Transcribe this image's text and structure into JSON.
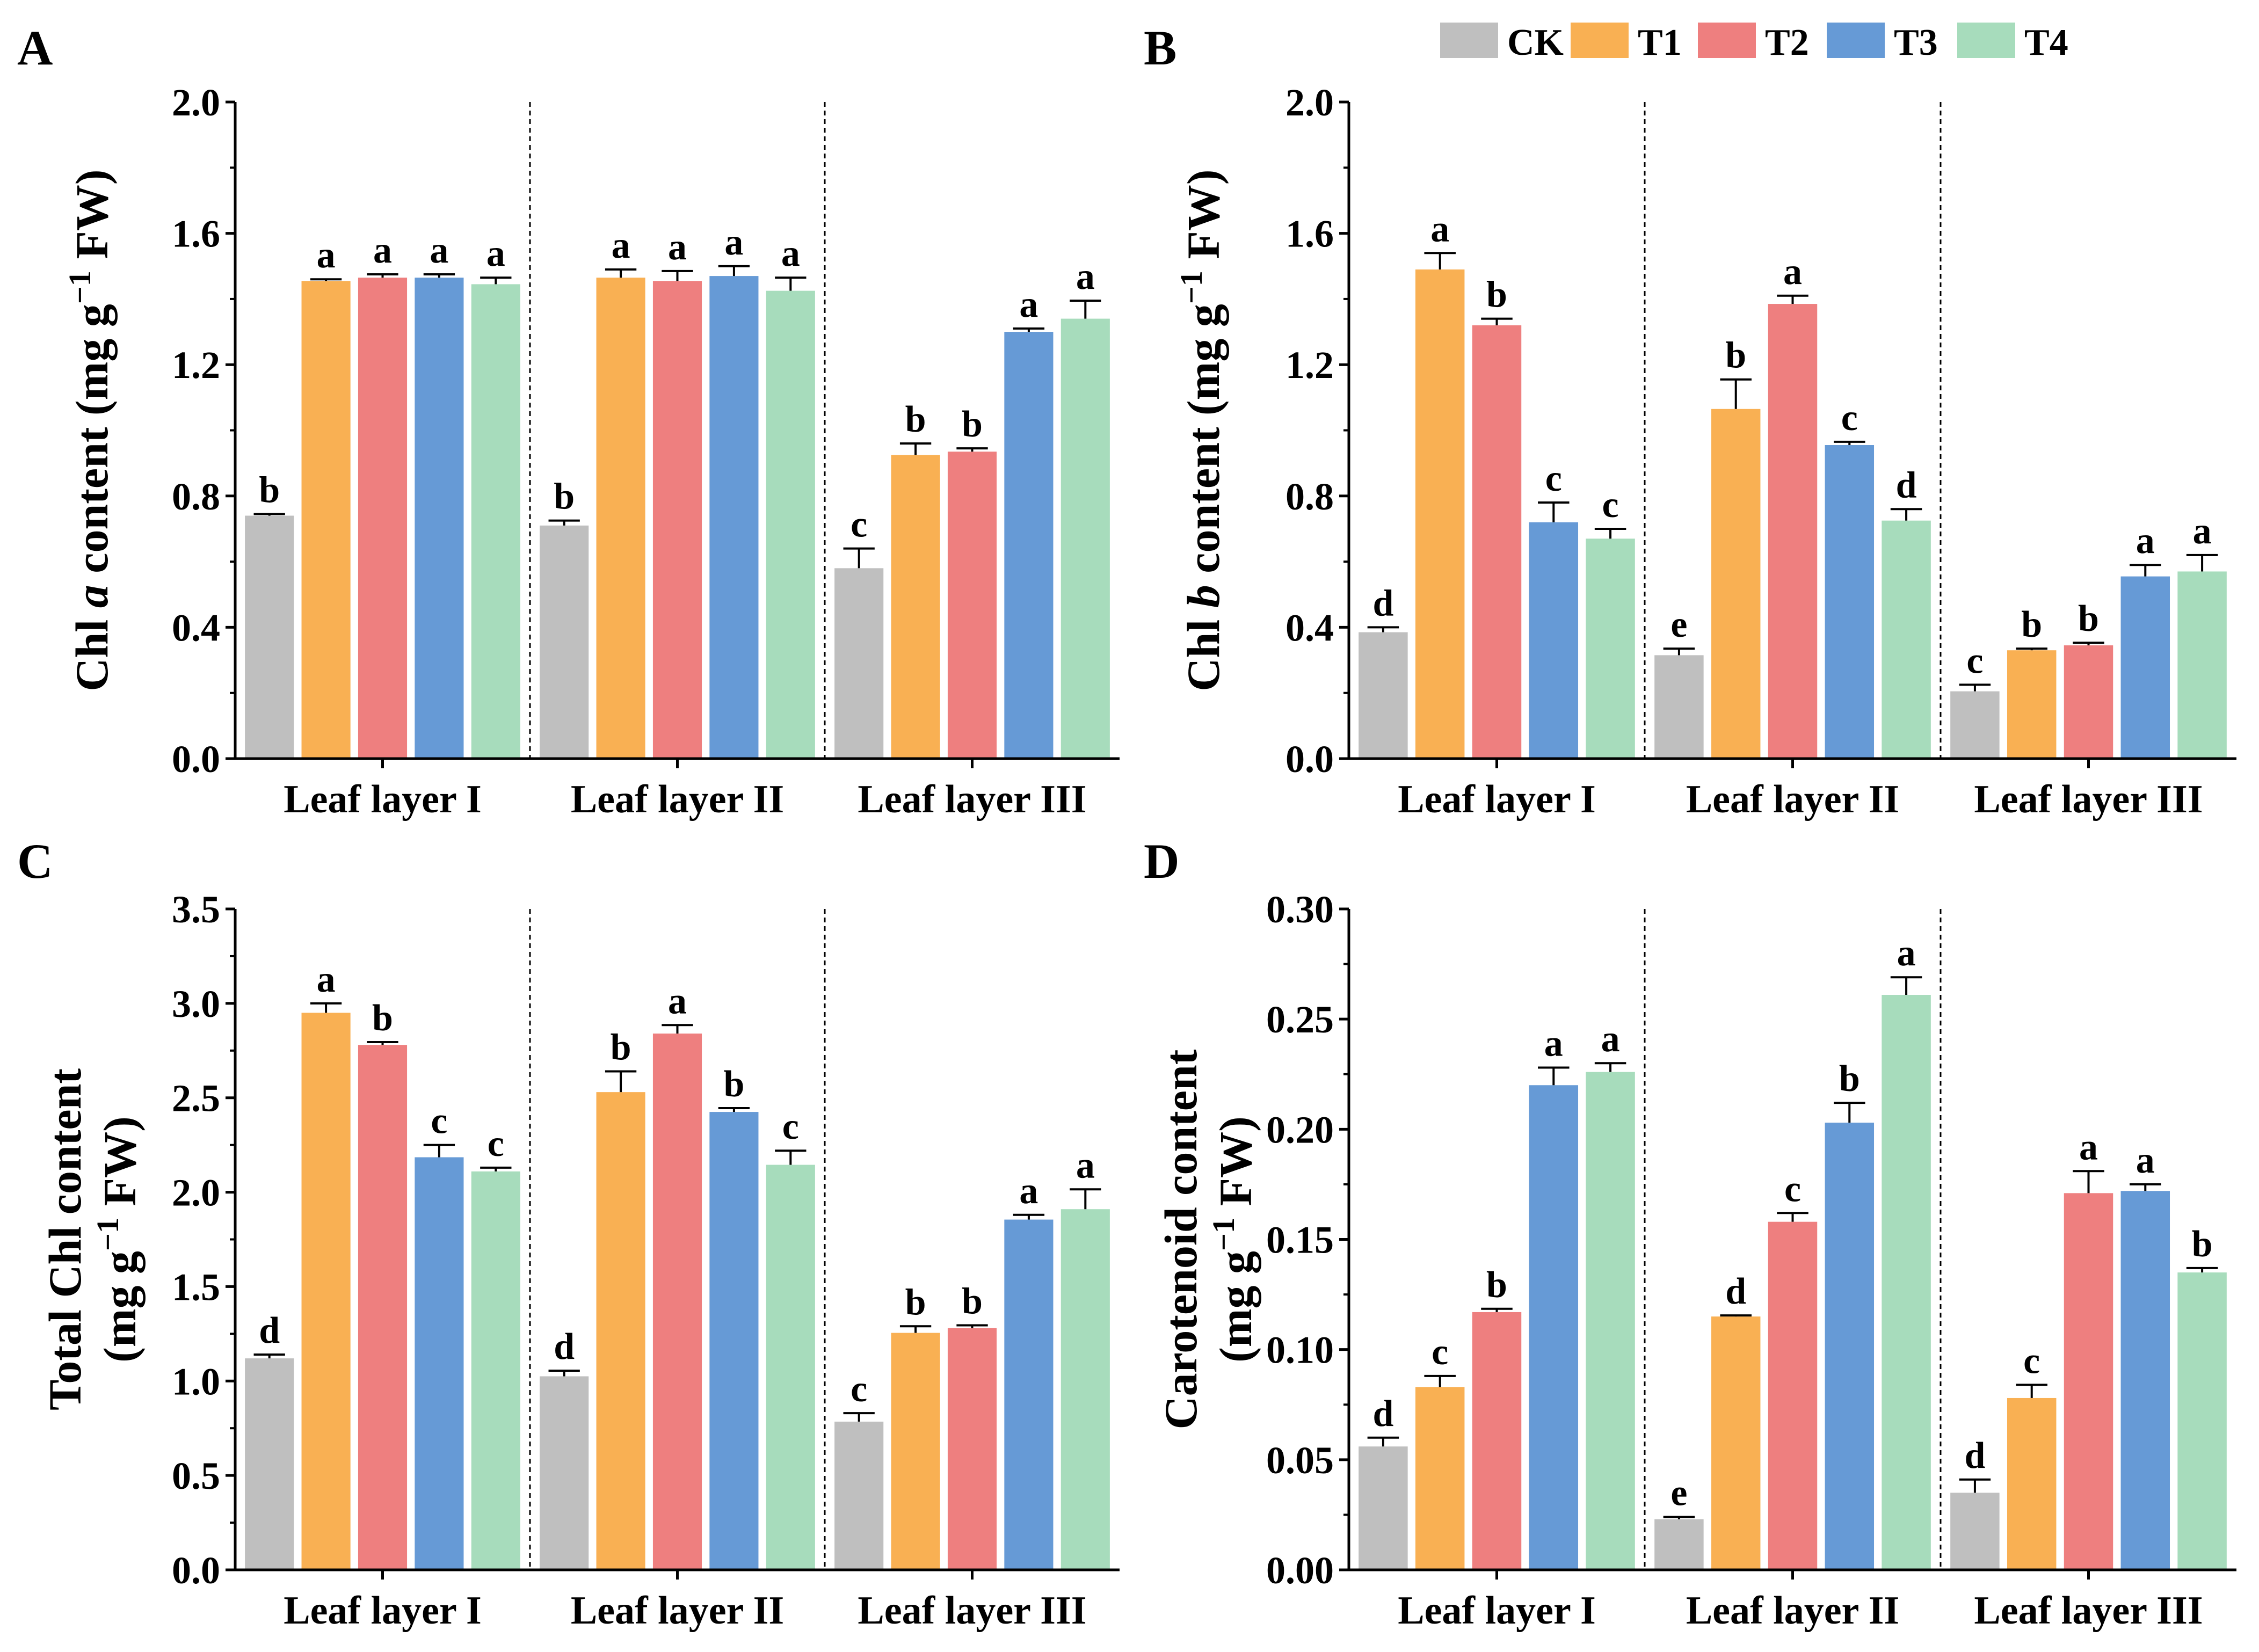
{
  "legend": [
    {
      "label": "CK",
      "color": "#bfbfbf"
    },
    {
      "label": "T1",
      "color": "#f9b053"
    },
    {
      "label": "T2",
      "color": "#ee7f7f"
    },
    {
      "label": "T3",
      "color": "#669ad6"
    },
    {
      "label": "T4",
      "color": "#a7dcbc"
    }
  ],
  "chart_data": [
    {
      "panel": "A",
      "type": "bar",
      "ylabel_html": "Chl <i>a</i> content (mg g<sup>−1</sup> FW)",
      "ylabel_lines": [
        [
          "Chl ",
          {
            "i": "a"
          },
          " content (mg g",
          {
            "sup": "−1"
          },
          " FW)"
        ]
      ],
      "ylim": [
        0,
        2.0
      ],
      "yticks": [
        "0.0",
        "0.4",
        "0.8",
        "1.2",
        "1.6",
        "2.0"
      ],
      "categories": [
        "Leaf layer I",
        "Leaf layer II",
        "Leaf layer III"
      ],
      "series": [
        {
          "name": "CK",
          "values": [
            0.74,
            0.71,
            0.58
          ],
          "errors": [
            0.005,
            0.015,
            0.06
          ],
          "letters": [
            "b",
            "b",
            "c"
          ]
        },
        {
          "name": "T1",
          "values": [
            1.455,
            1.465,
            0.925
          ],
          "errors": [
            0.005,
            0.025,
            0.035
          ],
          "letters": [
            "a",
            "a",
            "b"
          ]
        },
        {
          "name": "T2",
          "values": [
            1.465,
            1.455,
            0.935
          ],
          "errors": [
            0.01,
            0.03,
            0.01
          ],
          "letters": [
            "a",
            "a",
            "b"
          ]
        },
        {
          "name": "T3",
          "values": [
            1.465,
            1.47,
            1.3
          ],
          "errors": [
            0.01,
            0.03,
            0.01
          ],
          "letters": [
            "a",
            "a",
            "a"
          ]
        },
        {
          "name": "T4",
          "values": [
            1.445,
            1.425,
            1.34
          ],
          "errors": [
            0.02,
            0.04,
            0.055
          ],
          "letters": [
            "a",
            "a",
            "a"
          ]
        }
      ]
    },
    {
      "panel": "B",
      "type": "bar",
      "ylabel_lines": [
        [
          "Chl ",
          {
            "i": "b"
          },
          " content (mg g",
          {
            "sup": "−1"
          },
          " FW)"
        ]
      ],
      "ylim": [
        0,
        2.0
      ],
      "yticks": [
        "0.0",
        "0.4",
        "0.8",
        "1.2",
        "1.6",
        "2.0"
      ],
      "categories": [
        "Leaf layer I",
        "Leaf layer II",
        "Leaf layer III"
      ],
      "series": [
        {
          "name": "CK",
          "values": [
            0.385,
            0.315,
            0.205
          ],
          "errors": [
            0.015,
            0.02,
            0.02
          ],
          "letters": [
            "d",
            "e",
            "c"
          ]
        },
        {
          "name": "T1",
          "values": [
            1.49,
            1.065,
            0.33
          ],
          "errors": [
            0.05,
            0.09,
            0.005
          ],
          "letters": [
            "a",
            "b",
            "b"
          ]
        },
        {
          "name": "T2",
          "values": [
            1.32,
            1.385,
            0.345
          ],
          "errors": [
            0.02,
            0.025,
            0.008
          ],
          "letters": [
            "b",
            "a",
            "b"
          ]
        },
        {
          "name": "T3",
          "values": [
            0.72,
            0.955,
            0.555
          ],
          "errors": [
            0.06,
            0.01,
            0.035
          ],
          "letters": [
            "c",
            "c",
            "a"
          ]
        },
        {
          "name": "T4",
          "values": [
            0.67,
            0.725,
            0.57
          ],
          "errors": [
            0.03,
            0.035,
            0.05
          ],
          "letters": [
            "c",
            "d",
            "a"
          ]
        }
      ]
    },
    {
      "panel": "C",
      "type": "bar",
      "ylabel_lines": [
        [
          "Total Chl content"
        ],
        [
          "(mg g",
          {
            "sup": "−1"
          },
          " FW)"
        ]
      ],
      "ylim": [
        0,
        3.5
      ],
      "yticks": [
        "0.0",
        "0.5",
        "1.0",
        "1.5",
        "2.0",
        "2.5",
        "3.0",
        "3.5"
      ],
      "categories": [
        "Leaf layer I",
        "Leaf layer II",
        "Leaf layer III"
      ],
      "series": [
        {
          "name": "CK",
          "values": [
            1.12,
            1.025,
            0.785
          ],
          "errors": [
            0.02,
            0.03,
            0.045
          ],
          "letters": [
            "d",
            "d",
            "c"
          ]
        },
        {
          "name": "T1",
          "values": [
            2.95,
            2.53,
            1.255
          ],
          "errors": [
            0.05,
            0.11,
            0.035
          ],
          "letters": [
            "a",
            "b",
            "b"
          ]
        },
        {
          "name": "T2",
          "values": [
            2.78,
            2.84,
            1.28
          ],
          "errors": [
            0.015,
            0.045,
            0.015
          ],
          "letters": [
            "b",
            "a",
            "b"
          ]
        },
        {
          "name": "T3",
          "values": [
            2.185,
            2.425,
            1.855
          ],
          "errors": [
            0.065,
            0.02,
            0.025
          ],
          "letters": [
            "c",
            "b",
            "a"
          ]
        },
        {
          "name": "T4",
          "values": [
            2.11,
            2.145,
            1.91
          ],
          "errors": [
            0.02,
            0.075,
            0.105
          ],
          "letters": [
            "c",
            "c",
            "a"
          ]
        }
      ]
    },
    {
      "panel": "D",
      "type": "bar",
      "ylabel_lines": [
        [
          "Carotenoid content"
        ],
        [
          "(mg g",
          {
            "sup": "−1"
          },
          " FW)"
        ]
      ],
      "ylim": [
        0,
        0.3
      ],
      "yticks": [
        "0.00",
        "0.05",
        "0.10",
        "0.15",
        "0.20",
        "0.25",
        "0.30"
      ],
      "categories": [
        "Leaf layer I",
        "Leaf layer II",
        "Leaf layer III"
      ],
      "series": [
        {
          "name": "CK",
          "values": [
            0.056,
            0.023,
            0.035
          ],
          "errors": [
            0.004,
            0.001,
            0.006
          ],
          "letters": [
            "d",
            "e",
            "d"
          ]
        },
        {
          "name": "T1",
          "values": [
            0.083,
            0.115,
            0.078
          ],
          "errors": [
            0.005,
            0.0005,
            0.006
          ],
          "letters": [
            "c",
            "d",
            "c"
          ]
        },
        {
          "name": "T2",
          "values": [
            0.117,
            0.158,
            0.171
          ],
          "errors": [
            0.0015,
            0.004,
            0.01
          ],
          "letters": [
            "b",
            "c",
            "a"
          ]
        },
        {
          "name": "T3",
          "values": [
            0.22,
            0.203,
            0.172
          ],
          "errors": [
            0.008,
            0.009,
            0.003
          ],
          "letters": [
            "a",
            "b",
            "a"
          ]
        },
        {
          "name": "T4",
          "values": [
            0.226,
            0.261,
            0.135
          ],
          "errors": [
            0.004,
            0.008,
            0.002
          ],
          "letters": [
            "a",
            "a",
            "b"
          ]
        }
      ]
    }
  ]
}
